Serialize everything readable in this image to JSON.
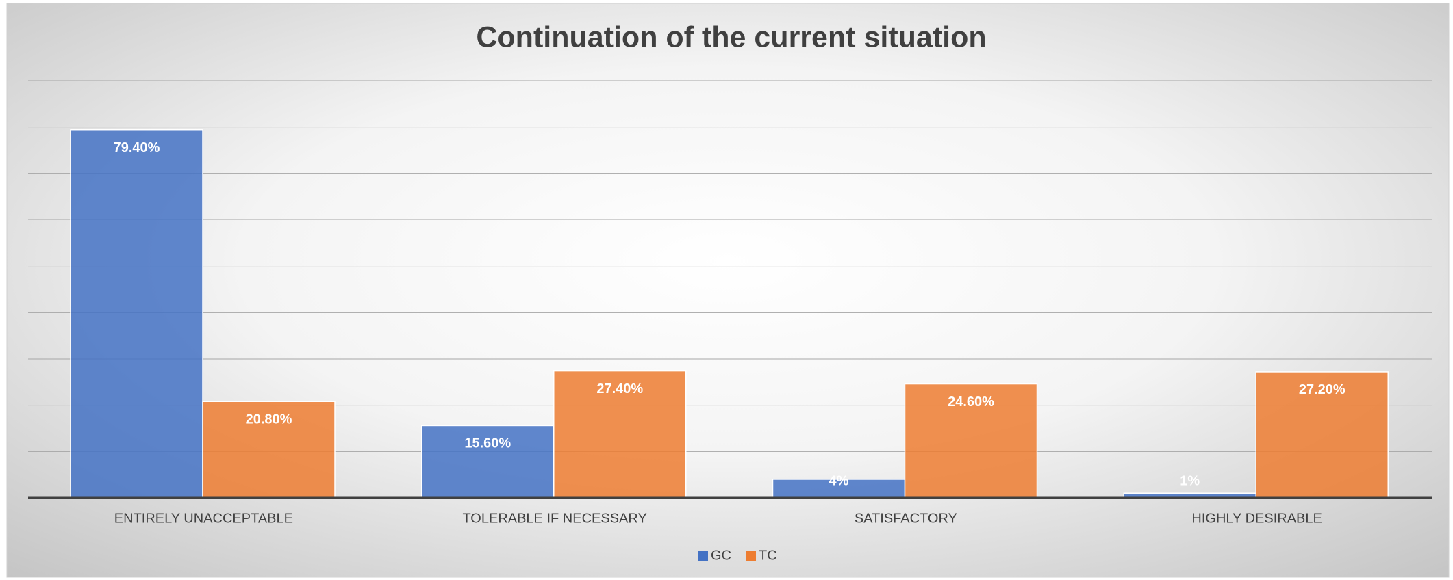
{
  "chart_data": {
    "type": "bar",
    "title": "Continuation of the current situation",
    "categories": [
      "ENTIRELY UNACCEPTABLE",
      "TOLERABLE IF NECESSARY",
      "SATISFACTORY",
      "HIGHLY DESIRABLE"
    ],
    "series": [
      {
        "name": "GC",
        "color": "#4472c4",
        "values": [
          79.4,
          15.6,
          4,
          1
        ],
        "value_labels": [
          "79.40%",
          "15.60%",
          "4%",
          "1%"
        ]
      },
      {
        "name": "TC",
        "color": "#ed7d31",
        "values": [
          20.8,
          27.4,
          24.6,
          27.2
        ],
        "value_labels": [
          "20.80%",
          "27.40%",
          "24.60%",
          "27.20%"
        ]
      }
    ],
    "ylim": [
      0,
      90
    ],
    "yticks": [
      0,
      10,
      20,
      30,
      40,
      50,
      60,
      70,
      80,
      90
    ],
    "grid": true,
    "legend": "bottom"
  }
}
